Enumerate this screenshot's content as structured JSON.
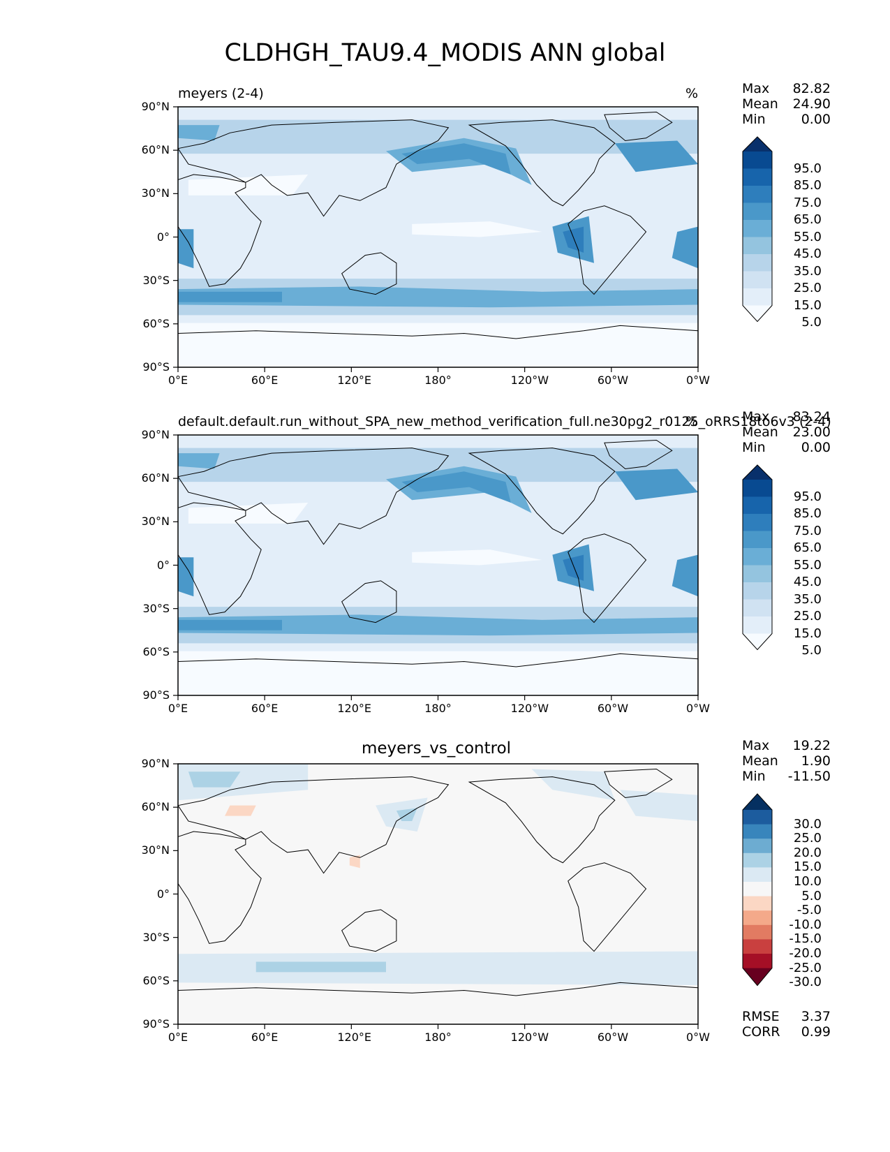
{
  "figure": {
    "title": "CLDHGH_TAU9.4_MODIS ANN global"
  },
  "axis_ticks": {
    "lon": [
      "0°E",
      "60°E",
      "120°E",
      "180°",
      "120°W",
      "60°W",
      "0°W"
    ],
    "lat": [
      "90°N",
      "60°N",
      "30°N",
      "0°",
      "30°S",
      "60°S",
      "90°S"
    ]
  },
  "panels": [
    {
      "title_left": "meyers (2-4)",
      "title_right": "%",
      "title_center": "",
      "stats": [
        {
          "label": "Max",
          "value": "82.82"
        },
        {
          "label": "Mean",
          "value": "24.90"
        },
        {
          "label": "Min",
          "value": "0.00"
        }
      ],
      "colorbar": {
        "ticks": [
          "95.0",
          "85.0",
          "75.0",
          "65.0",
          "55.0",
          "45.0",
          "35.0",
          "25.0",
          "15.0",
          "5.0"
        ],
        "colors": [
          "#f7fbff",
          "#e3eef9",
          "#d0e2f2",
          "#b7d4ea",
          "#94c4df",
          "#6aaed6",
          "#4a98c9",
          "#2e7ebc",
          "#1764ab",
          "#084a91",
          "#08306b"
        ]
      }
    },
    {
      "title_left": "default.default.run_without_SPA_new_method_verification_full.ne30pg2_r0125_oRRS18to6v3 (2-4)",
      "title_right": "%",
      "title_center": "",
      "stats": [
        {
          "label": "Max",
          "value": "83.24"
        },
        {
          "label": "Mean",
          "value": "23.00"
        },
        {
          "label": "Min",
          "value": "0.00"
        }
      ],
      "colorbar": {
        "ticks": [
          "95.0",
          "85.0",
          "75.0",
          "65.0",
          "55.0",
          "45.0",
          "35.0",
          "25.0",
          "15.0",
          "5.0"
        ],
        "colors": [
          "#f7fbff",
          "#e3eef9",
          "#d0e2f2",
          "#b7d4ea",
          "#94c4df",
          "#6aaed6",
          "#4a98c9",
          "#2e7ebc",
          "#1764ab",
          "#084a91",
          "#08306b"
        ]
      }
    },
    {
      "title_left": "",
      "title_right": "",
      "title_center": "meyers_vs_control",
      "stats": [
        {
          "label": "Max",
          "value": "19.22"
        },
        {
          "label": "Mean",
          "value": "1.90"
        },
        {
          "label": "Min",
          "value": "-11.50"
        }
      ],
      "metrics": [
        {
          "label": "RMSE",
          "value": "3.37"
        },
        {
          "label": "CORR",
          "value": "0.99"
        }
      ],
      "colorbar": {
        "ticks": [
          "30.0",
          "25.0",
          "20.0",
          "15.0",
          "10.0",
          "5.0",
          "-5.0",
          "-10.0",
          "-15.0",
          "-20.0",
          "-25.0",
          "-30.0"
        ],
        "colors": [
          "#67001f",
          "#a50f26",
          "#c9403f",
          "#e27b62",
          "#f4a98a",
          "#fbd7c4",
          "#f7f7f7",
          "#dbe9f3",
          "#acd2e5",
          "#6dacd1",
          "#3885bc",
          "#1c5c9e",
          "#053061"
        ]
      }
    }
  ]
}
